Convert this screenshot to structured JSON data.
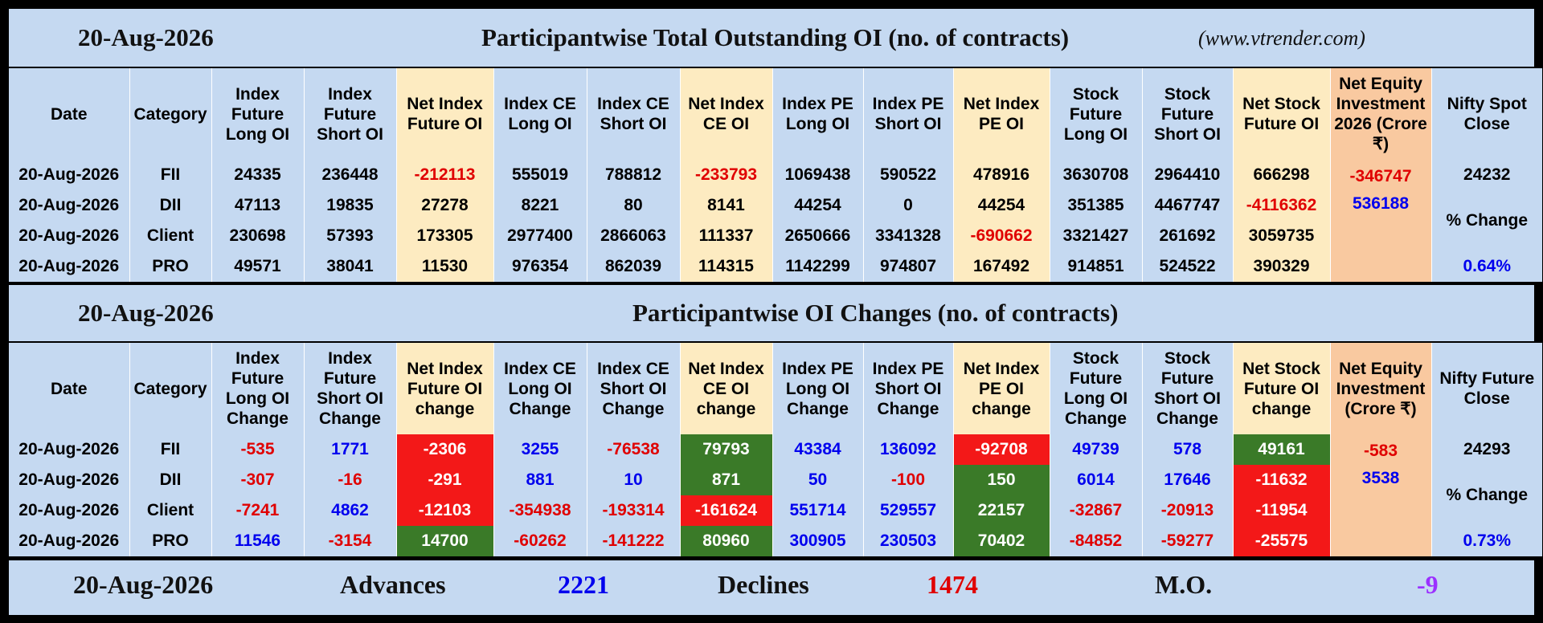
{
  "section1": {
    "date": "20-Aug-2026",
    "title": "Participantwise Total Outstanding OI (no. of contracts)",
    "site": "(www.vtrender.com)",
    "headers": [
      "Date",
      "Category",
      "Index Future Long OI",
      "Index Future Short OI",
      "Net Index Future OI",
      "Index CE Long OI",
      "Index CE Short OI",
      "Net Index CE OI",
      "Index PE Long OI",
      "Index PE Short OI",
      "Net Index PE OI",
      "Stock Future Long OI",
      "Stock Future Short OI",
      "Net Stock Future OI",
      "Net Equity Investment 2026 (Crore ₹)",
      "Nifty Spot Close"
    ],
    "rows": [
      [
        "20-Aug-2026",
        "FII",
        "24335",
        "236448",
        "-212113",
        "555019",
        "788812",
        "-233793",
        "1069438",
        "590522",
        "478916",
        "3630708",
        "2964410",
        "666298",
        "-346747",
        "24232"
      ],
      [
        "20-Aug-2026",
        "DII",
        "47113",
        "19835",
        "27278",
        "8221",
        "80",
        "8141",
        "44254",
        "0",
        "44254",
        "351385",
        "4467747",
        "-4116362",
        "536188",
        ""
      ],
      [
        "20-Aug-2026",
        "Client",
        "230698",
        "57393",
        "173305",
        "2977400",
        "2866063",
        "111337",
        "2650666",
        "3341328",
        "-690662",
        "3321427",
        "261692",
        "3059735",
        "",
        ""
      ],
      [
        "20-Aug-2026",
        "PRO",
        "49571",
        "38041",
        "11530",
        "976354",
        "862039",
        "114315",
        "1142299",
        "974807",
        "167492",
        "914851",
        "524522",
        "390329",
        "",
        "0.64%"
      ]
    ],
    "pct_label": "% Change"
  },
  "section2": {
    "date": "20-Aug-2026",
    "title": "Participantwise OI Changes (no. of contracts)",
    "headers": [
      "Date",
      "Category",
      "Index Future Long OI Change",
      "Index Future Short OI Change",
      "Net Index Future OI change",
      "Index CE Long OI Change",
      "Index CE Short OI Change",
      "Net Index CE OI change",
      "Index PE Long OI Change",
      "Index PE Short OI Change",
      "Net Index PE OI change",
      "Stock Future Long OI Change",
      "Stock Future Short OI Change",
      "Net Stock Future OI change",
      "Net Equity Investment (Crore ₹)",
      "Nifty Future Close"
    ],
    "rows": [
      [
        "20-Aug-2026",
        "FII",
        "-535",
        "1771",
        "-2306",
        "3255",
        "-76538",
        "79793",
        "43384",
        "136092",
        "-92708",
        "49739",
        "578",
        "49161",
        "-583",
        "24293"
      ],
      [
        "20-Aug-2026",
        "DII",
        "-307",
        "-16",
        "-291",
        "881",
        "10",
        "871",
        "50",
        "-100",
        "150",
        "6014",
        "17646",
        "-11632",
        "3538",
        ""
      ],
      [
        "20-Aug-2026",
        "Client",
        "-7241",
        "4862",
        "-12103",
        "-354938",
        "-193314",
        "-161624",
        "551714",
        "529557",
        "22157",
        "-32867",
        "-20913",
        "-11954",
        "",
        ""
      ],
      [
        "20-Aug-2026",
        "PRO",
        "11546",
        "-3154",
        "14700",
        "-60262",
        "-141222",
        "80960",
        "300905",
        "230503",
        "70402",
        "-84852",
        "-59277",
        "-25575",
        "",
        "0.73%"
      ]
    ],
    "pct_label": "% Change"
  },
  "footer": {
    "date": "20-Aug-2026",
    "advances_label": "Advances",
    "advances": "2221",
    "declines_label": "Declines",
    "declines": "1474",
    "mo_label": "M.O.",
    "mo": "-9"
  },
  "colors": {
    "panel": "#c5d9f1",
    "tan": "#fdebc1",
    "orange": "#f9c9a0",
    "green": "#3a7a28",
    "red": "#f31818",
    "blue_text": "#0000ee",
    "red_text": "#e00000",
    "mo_text": "#9b30ff"
  }
}
